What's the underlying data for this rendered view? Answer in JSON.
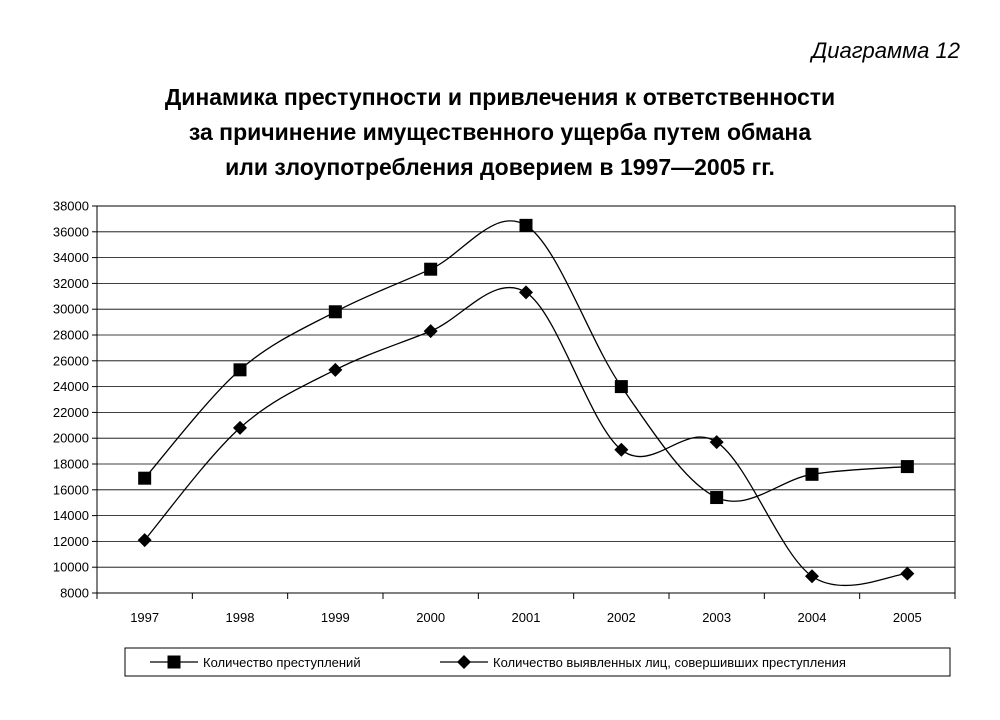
{
  "figure_label": "Диаграмма 12",
  "chart_data": {
    "type": "line",
    "title_lines": [
      "Динамика преступности и привлечения к ответственности",
      "за причинение имущественного ущерба путем обмана",
      "или злоупотребления доверием в 1997—2005 гг."
    ],
    "categories": [
      "1997",
      "1998",
      "1999",
      "2000",
      "2001",
      "2002",
      "2003",
      "2004",
      "2005"
    ],
    "ylim": [
      8000,
      38000
    ],
    "yticks": [
      8000,
      10000,
      12000,
      14000,
      16000,
      18000,
      20000,
      22000,
      24000,
      26000,
      28000,
      30000,
      32000,
      34000,
      36000,
      38000
    ],
    "grid": true,
    "smooth": true,
    "legend_position": "bottom",
    "series": [
      {
        "name": "Количество преступлений",
        "marker": "square",
        "values": [
          16900,
          25300,
          29800,
          33100,
          36500,
          24000,
          15400,
          17200,
          17800
        ]
      },
      {
        "name": "Количество выявленных лиц, совершивших преступления",
        "marker": "diamond",
        "values": [
          12100,
          20800,
          25300,
          28300,
          31300,
          19100,
          19700,
          9300,
          9500
        ]
      }
    ]
  }
}
